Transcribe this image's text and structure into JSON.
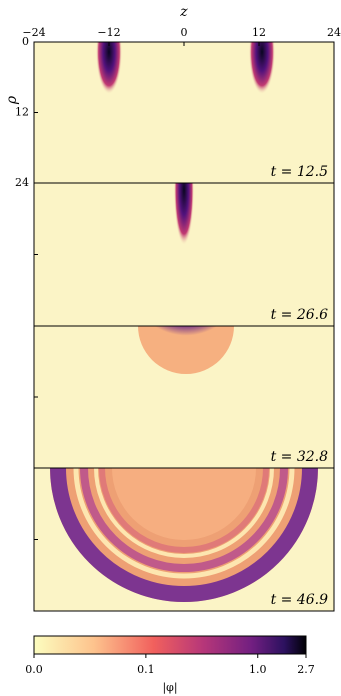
{
  "chart_data": [
    {
      "type": "heatmap",
      "x_label": "z",
      "y_label": "ρ",
      "xlim": [
        -24,
        24
      ],
      "xticks": [
        {
          "value": -24,
          "label": "−24"
        },
        {
          "value": -12,
          "label": "−12"
        },
        0,
        12,
        24
      ],
      "ylim": [
        0,
        24
      ],
      "yticks": [
        0,
        12,
        24
      ],
      "ytick_labels": true,
      "annotation": "t = 12.5"
    },
    {
      "type": "heatmap",
      "ylim": [
        0,
        24
      ],
      "yticks": [
        12
      ],
      "ytick_labels": false,
      "annotation": "t = 26.6"
    },
    {
      "type": "heatmap",
      "ylim": [
        0,
        24
      ],
      "yticks": [
        12
      ],
      "ytick_labels": false,
      "annotation": "t = 32.8"
    },
    {
      "type": "heatmap",
      "ylim": [
        0,
        24
      ],
      "yticks": [
        12
      ],
      "ytick_labels": false,
      "annotation": "t = 46.9"
    },
    {
      "type": "colorbar",
      "label": "|φ|",
      "scale": "symlog",
      "linthresh": 0.1,
      "xlim": [
        0,
        2.7
      ],
      "xticks": [
        {
          "value": 0,
          "label": "0.0"
        },
        0.1,
        {
          "value": 1,
          "label": "1.0"
        },
        2.7
      ]
    }
  ]
}
